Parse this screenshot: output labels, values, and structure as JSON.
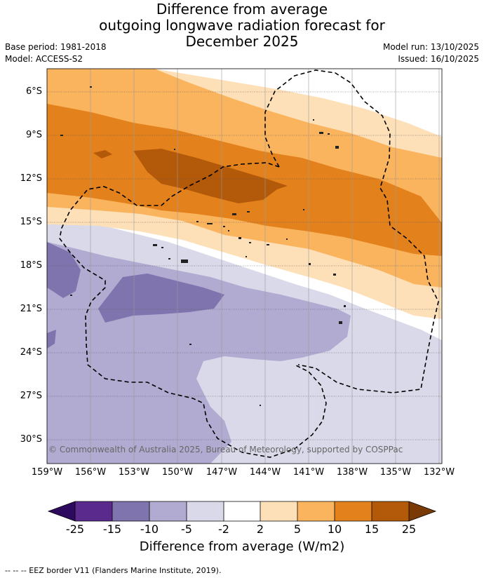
{
  "title": {
    "line1": "Difference from average",
    "line2": "outgoing longwave radiation forecast for",
    "line3": "December 2025"
  },
  "meta": {
    "base_period": "Base period: 1981-2018",
    "model": "Model: ACCESS-S2",
    "model_run": "Model run: 13/10/2025",
    "issued": "Issued: 16/10/2025"
  },
  "map": {
    "lat_labels": [
      "6°S",
      "9°S",
      "12°S",
      "15°S",
      "18°S",
      "21°S",
      "24°S",
      "27°S",
      "30°S"
    ],
    "lon_labels": [
      "159°W",
      "156°W",
      "153°W",
      "150°W",
      "147°W",
      "144°W",
      "141°W",
      "138°W",
      "135°W",
      "132°W"
    ],
    "copyright": "© Commonwealth of Australia 2025, Bureau of Meteorology, supported by COSPPac"
  },
  "colorbar": {
    "ticks": [
      "-25",
      "-15",
      "-10",
      "-5",
      "-2",
      "2",
      "5",
      "10",
      "15",
      "25"
    ],
    "colors": {
      "under": "#2d0a5e",
      "c1": "#5a2a8c",
      "c2": "#7f74ad",
      "c3": "#b1abd1",
      "c4": "#d9d9ea",
      "c5": "#ffffff",
      "c6": "#fde0b8",
      "c7": "#fbb45e",
      "c8": "#e3821c",
      "c9": "#b3590a",
      "over": "#7a3a05"
    },
    "title": "Difference from average (W/m2)"
  },
  "footnote": "--  --  -- EEZ border V11 (Flanders Marine Institute, 2019)."
}
